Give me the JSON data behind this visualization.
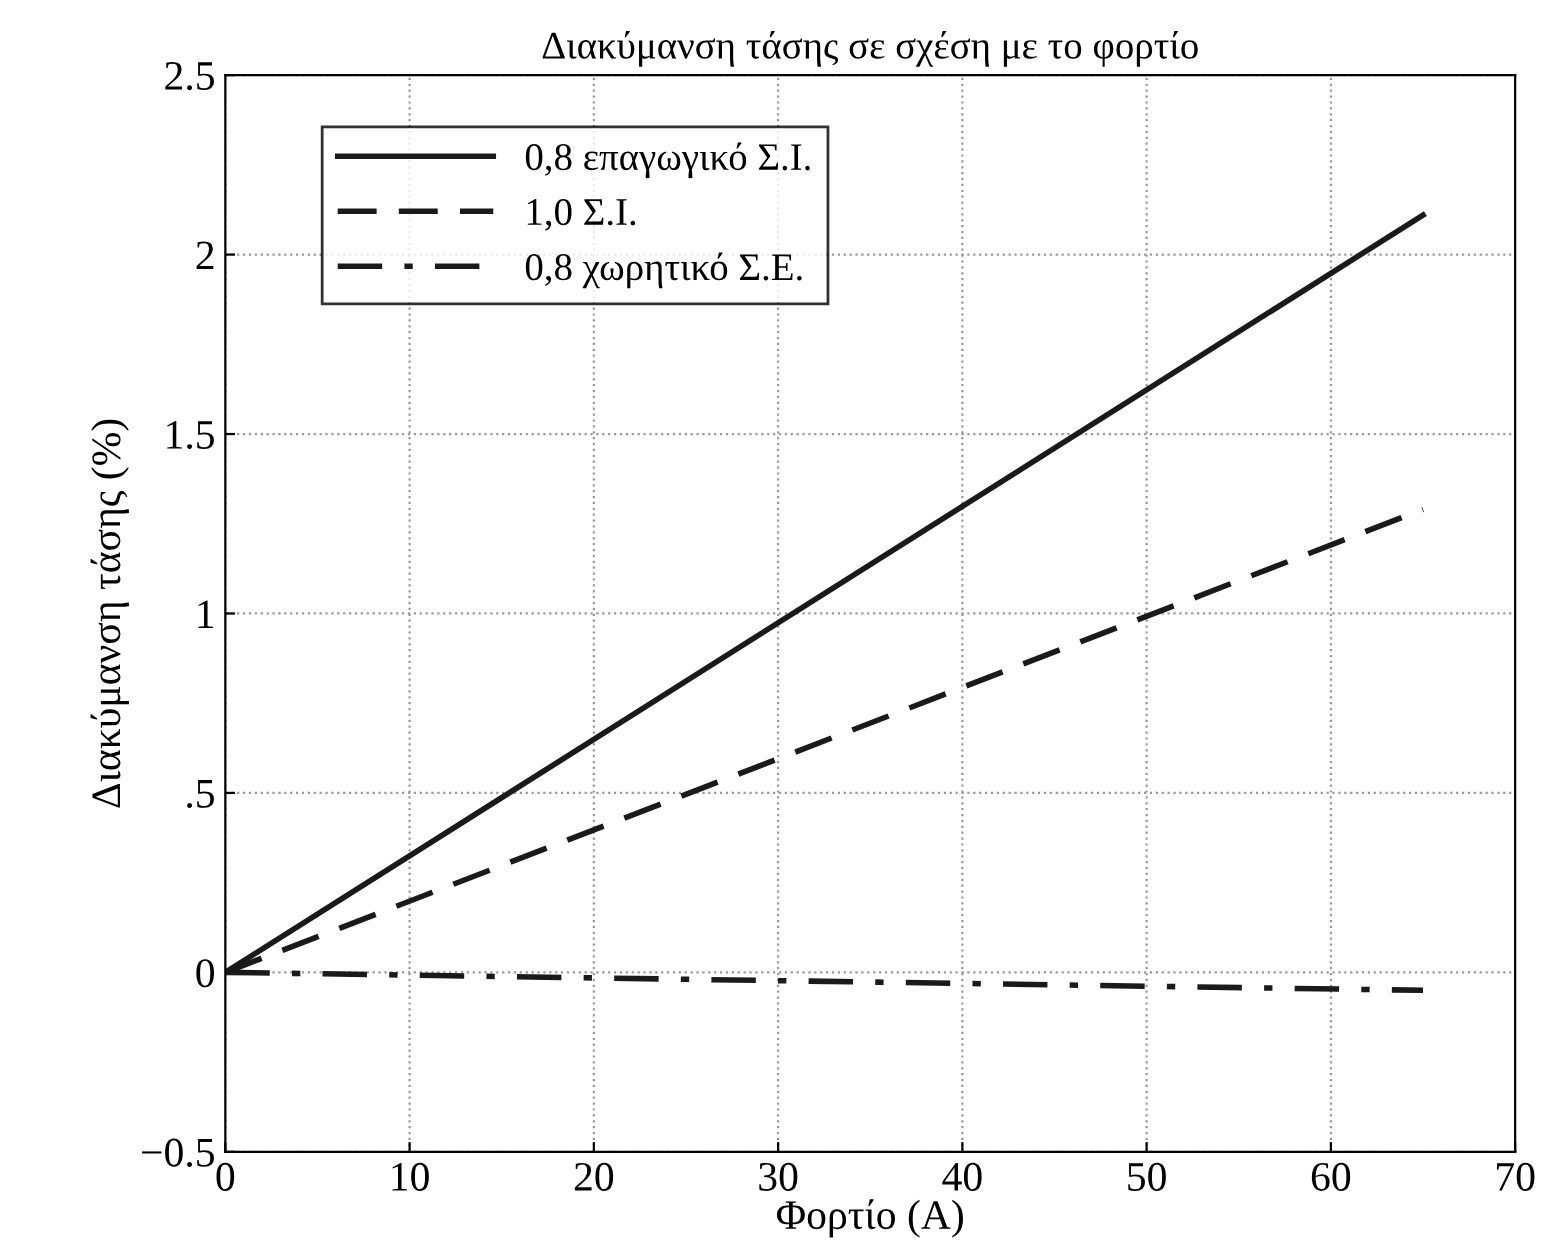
{
  "chart_data": {
    "type": "line",
    "title": "Διακύμανση τάσης σε σχέση με το φορτίο",
    "xlabel": "Φορτίο (A)",
    "ylabel": "Διακύμανση τάσης (%)",
    "x": [
      0,
      65
    ],
    "series": [
      {
        "name": "0,8 επαγωγικό Σ.Ι.",
        "color": "#1a1a1a",
        "values": [
          0,
          2.11
        ],
        "line_style": "solid"
      },
      {
        "name": "1,0 Σ.Ι.",
        "color": "#1a1a1a",
        "values": [
          0,
          1.29
        ],
        "line_style": "dashed"
      },
      {
        "name": "0,8 χωρητικό Σ.Ε.",
        "color": "#1a1a1a",
        "values": [
          0,
          -0.05
        ],
        "line_style": "dashdot"
      }
    ],
    "xlim": [
      0,
      70
    ],
    "xticks": [
      0,
      10,
      20,
      30,
      40,
      50,
      60,
      70
    ],
    "ylim": [
      -0.5,
      2.5
    ],
    "yticks": [
      {
        "value": -0.5,
        "label": "−0.5"
      },
      0,
      {
        "value": 0.5,
        "label": ".5"
      },
      1,
      1.5,
      2,
      2.5
    ],
    "grid": true,
    "legend": "top left",
    "marker": "none"
  }
}
